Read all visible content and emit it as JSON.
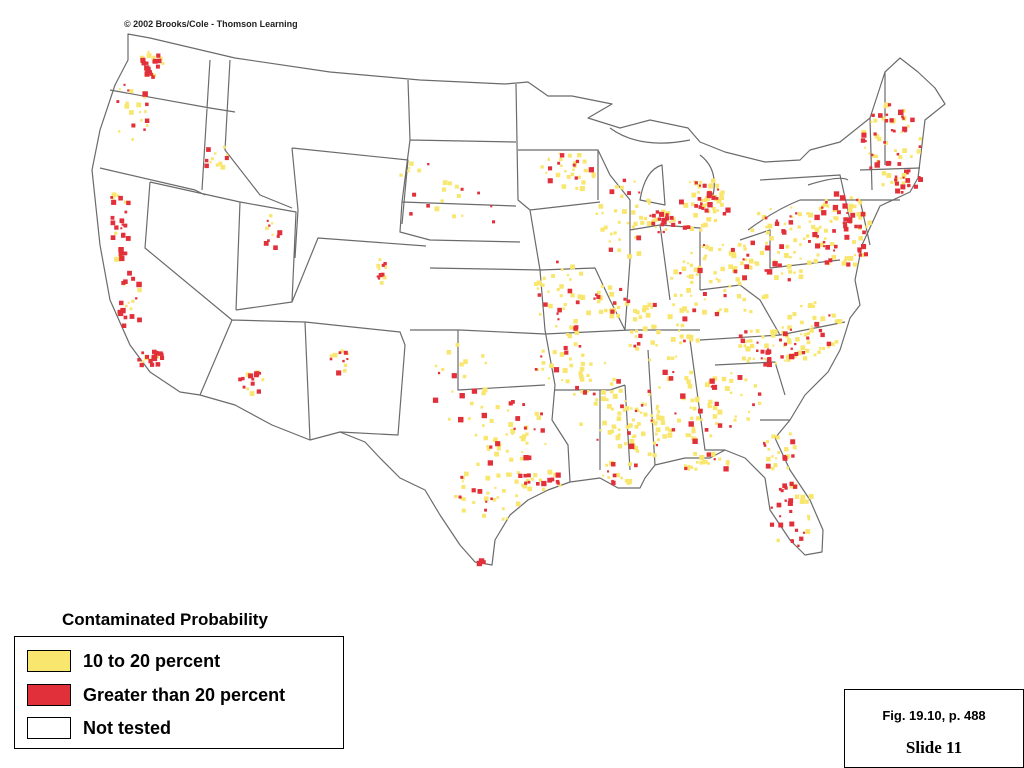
{
  "copyright": "© 2002 Brooks/Cole - Thomson Learning",
  "legend": {
    "title": "Contaminated Probability",
    "items": [
      {
        "label": "10 to 20 percent",
        "color": "#f8e66e"
      },
      {
        "label": "Greater than 20 percent",
        "color": "#e2303a"
      },
      {
        "label": "Not tested",
        "color": "#ffffff"
      }
    ]
  },
  "caption": {
    "figure": "Fig. 19.10, p. 488",
    "slide": "Slide 11"
  },
  "colors": {
    "state_border": "#6b6b6b",
    "low": "#f8e66e",
    "high": "#e2303a"
  }
}
